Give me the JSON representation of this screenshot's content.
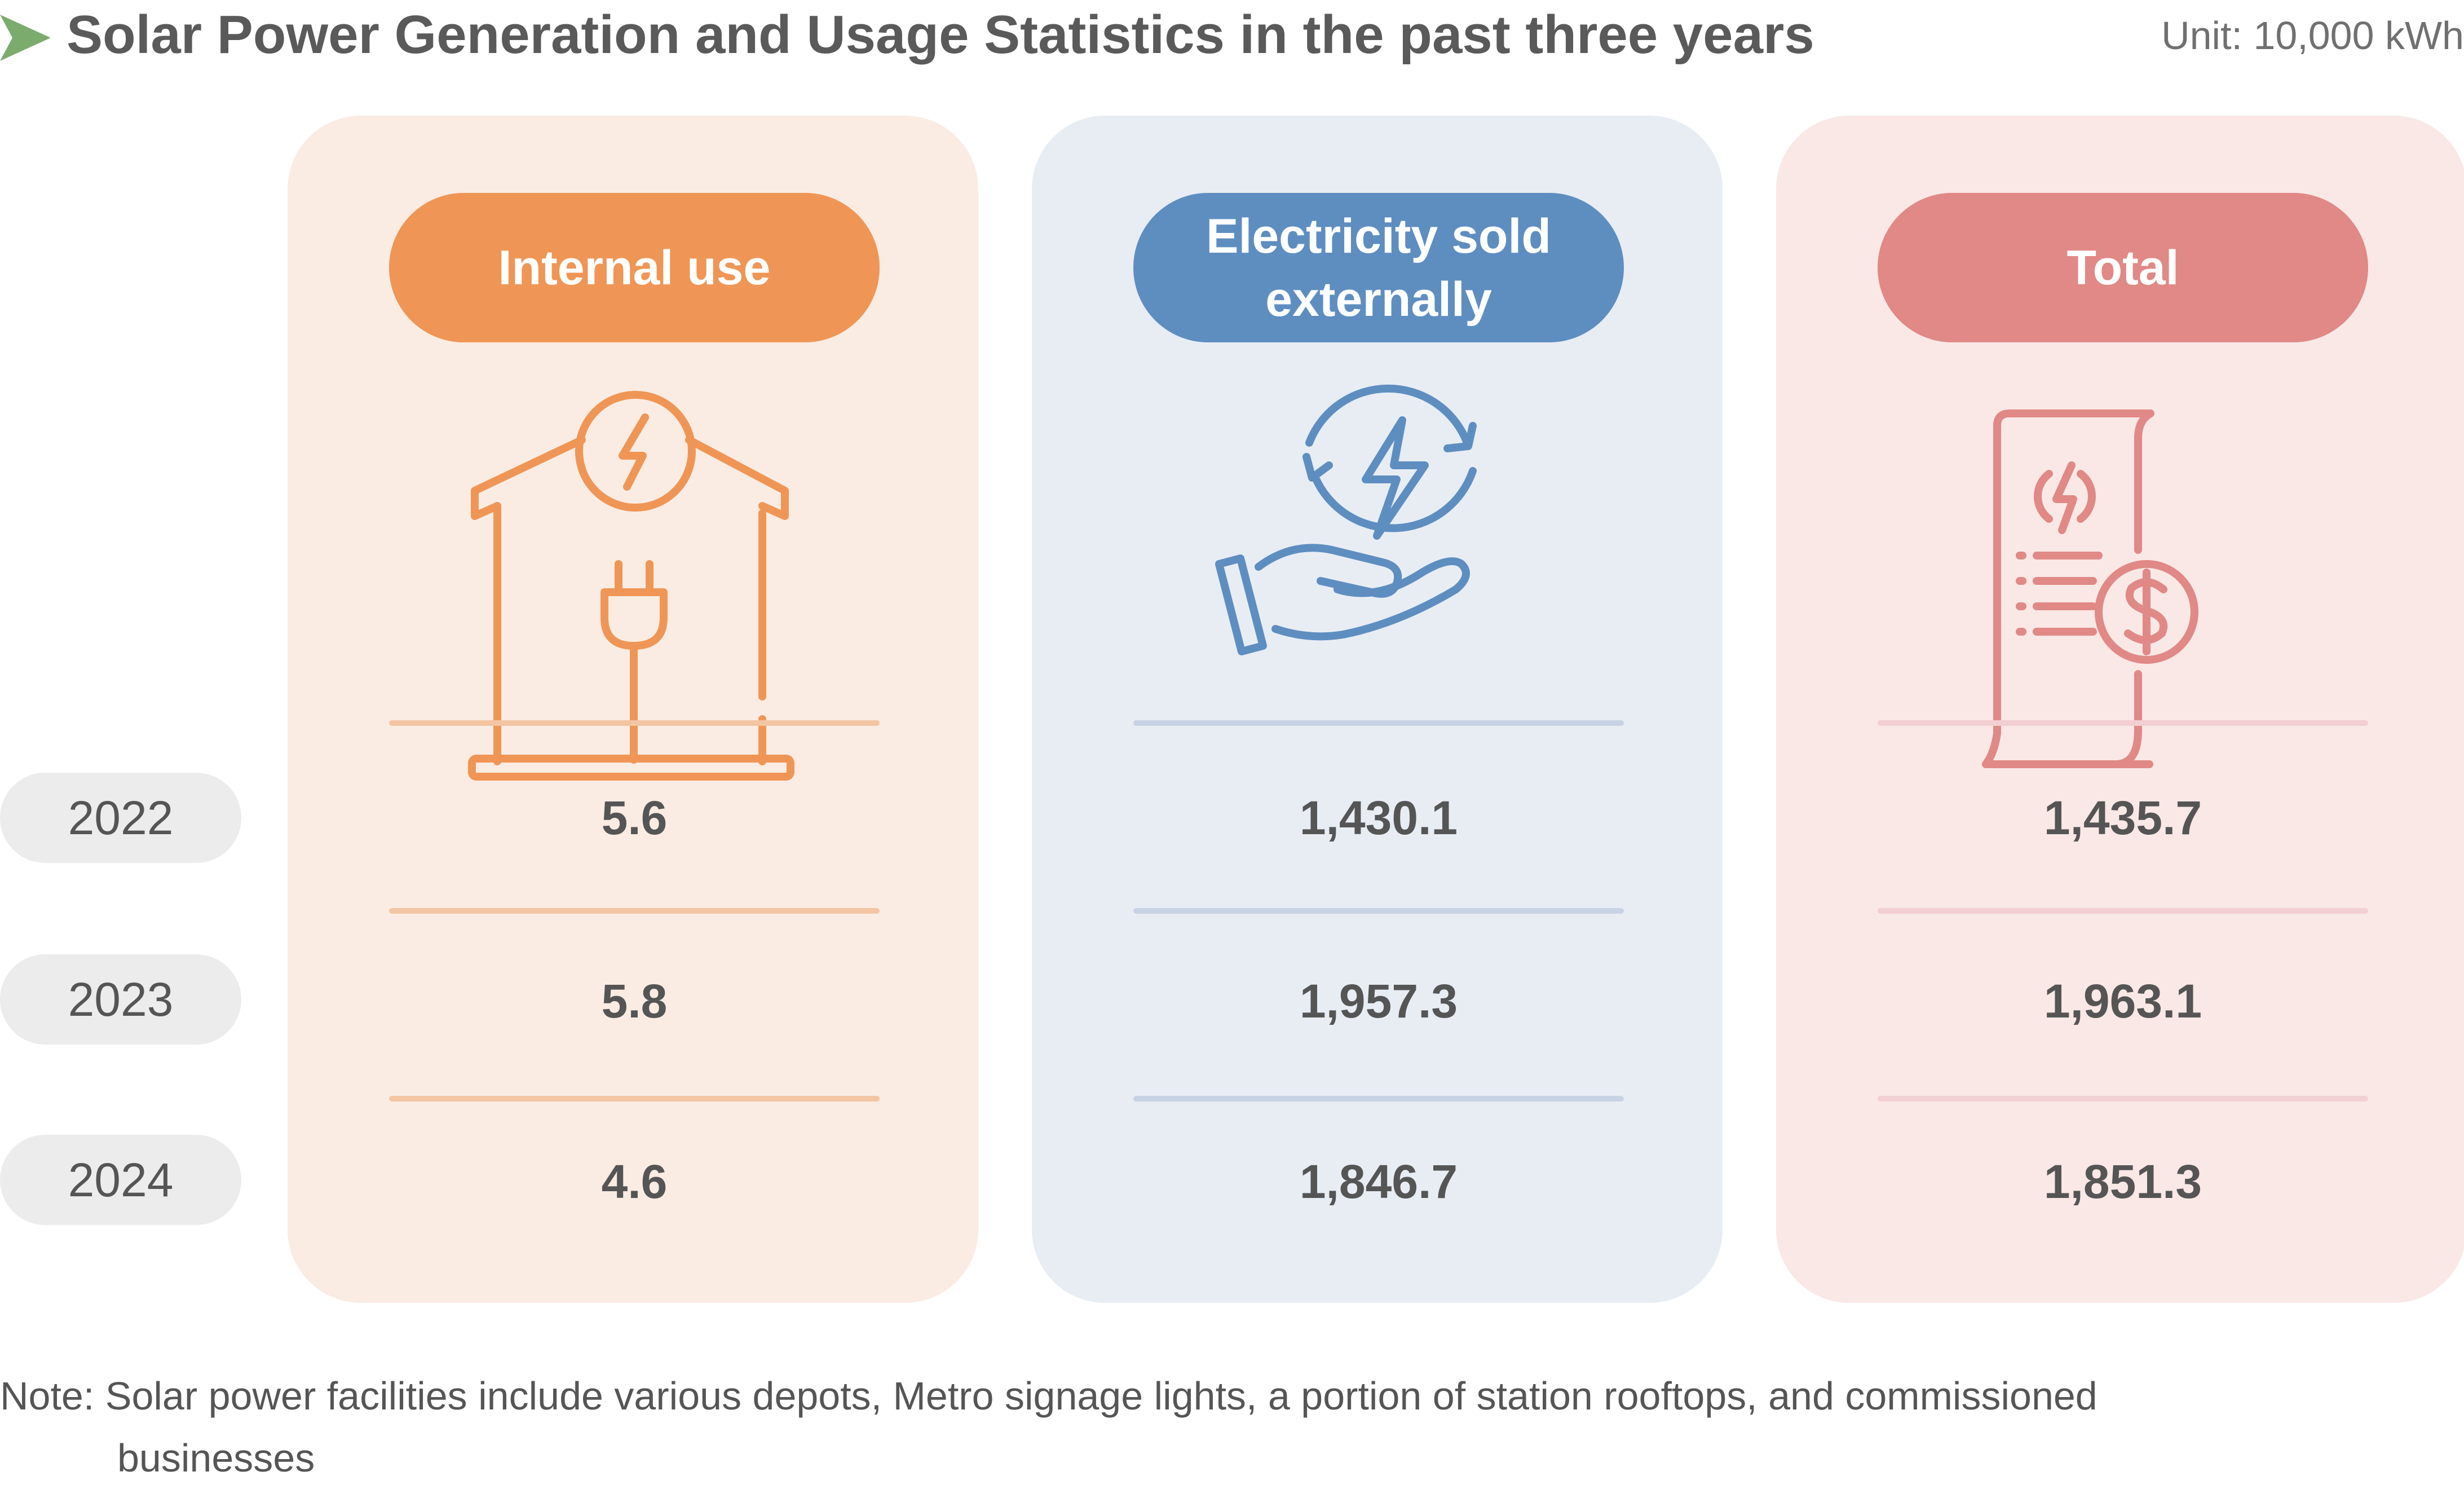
{
  "header": {
    "title": "Solar Power Generation and Usage Statistics in the past three years",
    "unit": "Unit: 10,000 kWh"
  },
  "years": [
    "2022",
    "2023",
    "2024"
  ],
  "columns": [
    {
      "label": "Internal use",
      "icon": "house-plug-icon",
      "color": "#ef9656",
      "values": [
        "5.6",
        "5.8",
        "4.6"
      ]
    },
    {
      "label": "Electricity sold externally",
      "icon": "hand-energy-icon",
      "color": "#5e8ec0",
      "values": [
        "1,430.1",
        "1,957.3",
        "1,846.7"
      ]
    },
    {
      "label": "Total",
      "icon": "electricity-bill-icon",
      "color": "#e08986",
      "values": [
        "1,435.7",
        "1,963.1",
        "1,851.3"
      ]
    }
  ],
  "note": {
    "line1": "Note: Solar power facilities include various depots, Metro signage lights, a portion of station rooftops, and commissioned",
    "line2": "businesses"
  },
  "chart_data": {
    "type": "table",
    "title": "Solar Power Generation and Usage Statistics in the past three years",
    "unit": "Unit: 10,000 kWh",
    "categories": [
      "2022",
      "2023",
      "2024"
    ],
    "series": [
      {
        "name": "Internal use",
        "values": [
          5.6,
          5.8,
          4.6
        ]
      },
      {
        "name": "Electricity sold externally",
        "values": [
          1430.1,
          1957.3,
          1846.7
        ]
      },
      {
        "name": "Total",
        "values": [
          1435.7,
          1963.1,
          1851.3
        ]
      }
    ]
  }
}
